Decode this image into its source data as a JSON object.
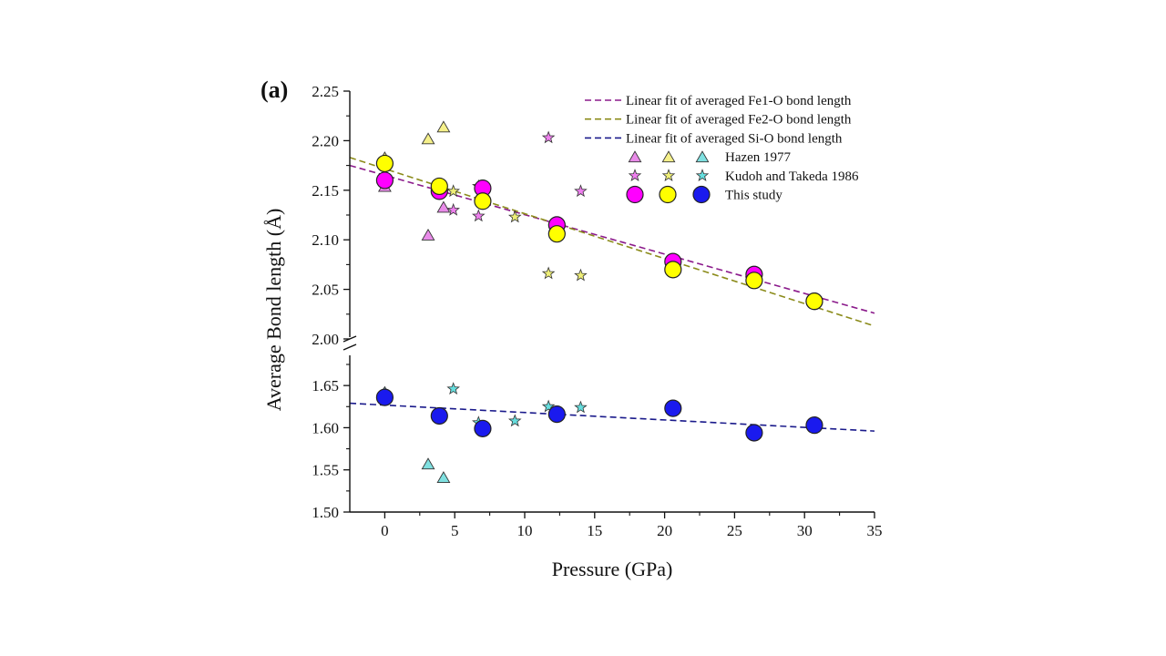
{
  "chart_data": {
    "type": "scatter",
    "panel_label": "(a)",
    "xlabel": "Pressure (GPa)",
    "ylabel": "Average Bond length (Å)",
    "xlim": [
      -2.5,
      35
    ],
    "x_ticks": [
      0,
      5,
      10,
      15,
      20,
      25,
      30,
      35
    ],
    "x_tick_labels": [
      "0",
      "5",
      "10",
      "15",
      "20",
      "25",
      "30",
      "35"
    ],
    "y_axis_break": true,
    "ylim_upper": [
      2.0,
      2.25
    ],
    "ylim_lower": [
      1.5,
      1.675
    ],
    "y_ticks_upper": [
      2.0,
      2.05,
      2.1,
      2.15,
      2.2,
      2.25
    ],
    "y_tick_labels_upper": [
      "2.00",
      "2.05",
      "2.10",
      "2.15",
      "2.20",
      "2.25"
    ],
    "y_ticks_lower": [
      1.5,
      1.55,
      1.6,
      1.65
    ],
    "y_tick_labels_lower": [
      "1.50",
      "1.55",
      "1.60",
      "1.65"
    ],
    "colors": {
      "fe1": "#ff00ff",
      "fe2": "#ffff00",
      "si": "#1a1aee",
      "hazen_fe1": "#e98be9",
      "hazen_fe2": "#f5f08a",
      "hazen_si": "#7fe0e0",
      "kudoh_fe1": "#ee7fee",
      "kudoh_fe2": "#eeee77",
      "kudoh_si": "#66dede",
      "fit_fe1": "#8b1a8b",
      "fit_fe2": "#8b8b1a",
      "fit_si": "#1a1a8b"
    },
    "legend": [
      {
        "label": "Linear fit of averaged Fe1-O bond length",
        "kind": "line",
        "series": "fit_fe1"
      },
      {
        "label": "Linear fit of averaged Fe2-O bond length",
        "kind": "line",
        "series": "fit_fe2"
      },
      {
        "label": "Linear fit of averaged Si-O bond length",
        "kind": "line",
        "series": "fit_si"
      },
      {
        "label": "Hazen 1977",
        "kind": "triangle",
        "series": [
          "hazen_fe1",
          "hazen_fe2",
          "hazen_si"
        ]
      },
      {
        "label": "Kudoh and Takeda 1986",
        "kind": "star",
        "series": [
          "kudoh_fe1",
          "kudoh_fe2",
          "kudoh_si"
        ]
      },
      {
        "label": "This study",
        "kind": "circle",
        "series": [
          "fe1",
          "fe2",
          "si"
        ]
      }
    ],
    "fits": [
      {
        "name": "Linear fit of averaged Fe1-O bond length",
        "color_key": "fit_fe1",
        "x": [
          -2.5,
          35
        ],
        "y": [
          2.175,
          2.026
        ]
      },
      {
        "name": "Linear fit of averaged Fe2-O bond length",
        "color_key": "fit_fe2",
        "x": [
          -2.5,
          35
        ],
        "y": [
          2.183,
          2.013
        ]
      },
      {
        "name": "Linear fit of averaged Si-O bond length",
        "color_key": "fit_si",
        "x": [
          -2.5,
          35
        ],
        "y": [
          1.629,
          1.596
        ]
      }
    ],
    "series": [
      {
        "name": "Hazen 1977 Fe1-O",
        "marker": "triangle",
        "color_key": "hazen_fe1",
        "x": [
          0,
          3.1,
          4.2
        ],
        "y": [
          2.153,
          2.104,
          2.132
        ]
      },
      {
        "name": "Hazen 1977 Fe2-O",
        "marker": "triangle",
        "color_key": "hazen_fe2",
        "x": [
          0,
          3.1,
          4.2
        ],
        "y": [
          2.182,
          2.201,
          2.213
        ]
      },
      {
        "name": "Hazen 1977 Si-O",
        "marker": "triangle",
        "color_key": "hazen_si",
        "x": [
          0,
          3.1,
          4.2
        ],
        "y": [
          1.641,
          1.556,
          1.54
        ]
      },
      {
        "name": "Kudoh and Takeda 1986 Fe1-O",
        "marker": "star",
        "color_key": "kudoh_fe1",
        "x": [
          4.9,
          6.7,
          11.7,
          14.0
        ],
        "y": [
          2.13,
          2.124,
          2.203,
          2.149
        ]
      },
      {
        "name": "Kudoh and Takeda 1986 Fe2-O",
        "marker": "star",
        "color_key": "kudoh_fe2",
        "x": [
          4.9,
          6.7,
          9.3,
          11.7,
          14.0
        ],
        "y": [
          2.149,
          2.154,
          2.123,
          2.066,
          2.064
        ]
      },
      {
        "name": "Kudoh and Takeda 1986 Si-O",
        "marker": "star",
        "color_key": "kudoh_si",
        "x": [
          4.9,
          6.7,
          9.3,
          11.7,
          14.0
        ],
        "y": [
          1.646,
          1.606,
          1.608,
          1.625,
          1.624
        ]
      },
      {
        "name": "This study Fe1-O",
        "marker": "circle",
        "color_key": "fe1",
        "x": [
          0,
          3.9,
          7.0,
          12.3,
          20.6,
          26.4,
          30.7
        ],
        "y": [
          2.16,
          2.149,
          2.152,
          2.115,
          2.078,
          2.065,
          2.038
        ]
      },
      {
        "name": "This study Fe2-O",
        "marker": "circle",
        "color_key": "fe2",
        "x": [
          0,
          3.9,
          7.0,
          12.3,
          20.6,
          26.4,
          30.7
        ],
        "y": [
          2.177,
          2.154,
          2.139,
          2.106,
          2.07,
          2.059,
          2.038
        ]
      },
      {
        "name": "This study Si-O",
        "marker": "circle",
        "color_key": "si",
        "x": [
          0,
          3.9,
          7.0,
          12.3,
          20.6,
          26.4,
          30.7
        ],
        "y": [
          1.636,
          1.614,
          1.599,
          1.616,
          1.623,
          1.594,
          1.603
        ]
      }
    ]
  }
}
